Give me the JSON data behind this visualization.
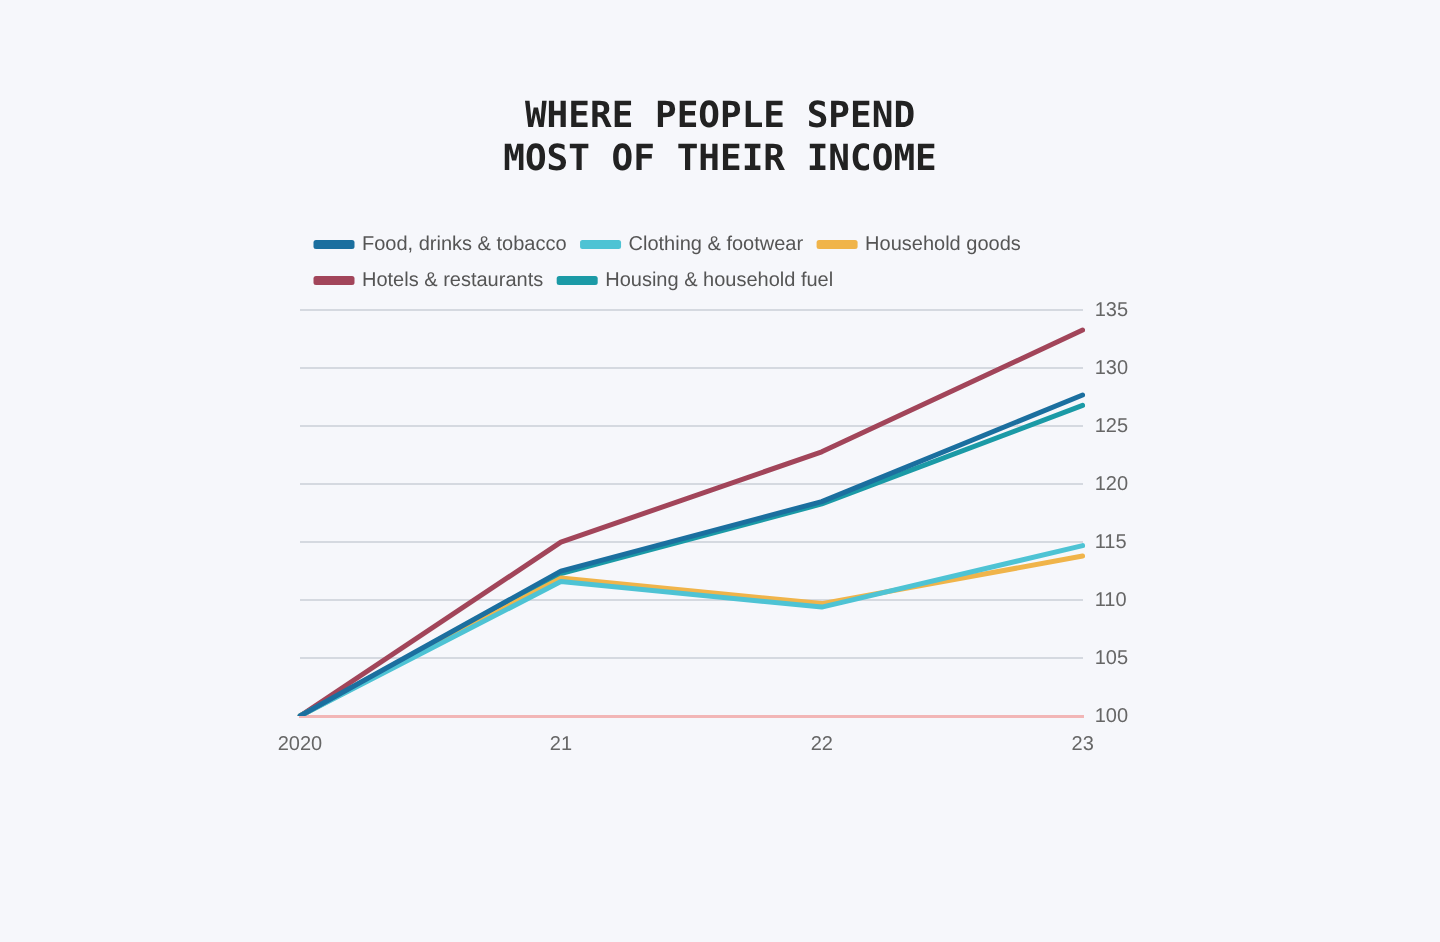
{
  "chart_data": {
    "type": "line",
    "title": [
      "WHERE PEOPLE SPEND",
      "MOST OF THEIR INCOME"
    ],
    "categories": [
      "2020",
      "21",
      "22",
      "23"
    ],
    "series": [
      {
        "name": "Food, drinks & tobacco",
        "color": "#1b6f9f",
        "values": [
          100,
          112.5,
          118.5,
          127.7
        ]
      },
      {
        "name": "Clothing & footwear",
        "color": "#4ec3d4",
        "values": [
          100,
          111.6,
          109.4,
          114.7
        ]
      },
      {
        "name": "Household goods",
        "color": "#f0b44a",
        "values": [
          100,
          111.9,
          109.7,
          113.8
        ]
      },
      {
        "name": "Hotels & restaurants",
        "color": "#a2455a",
        "values": [
          100,
          115,
          122.8,
          133.3
        ]
      },
      {
        "name": "Housing & household fuel",
        "color": "#1b9aa6",
        "values": [
          100,
          112.3,
          118.3,
          126.8
        ]
      }
    ],
    "ylim": [
      100,
      135
    ],
    "yticks": [
      100,
      105,
      110,
      115,
      120,
      125,
      130,
      135
    ],
    "grid": "y",
    "legend": "top left",
    "marker": "none",
    "line_style": "solid"
  }
}
